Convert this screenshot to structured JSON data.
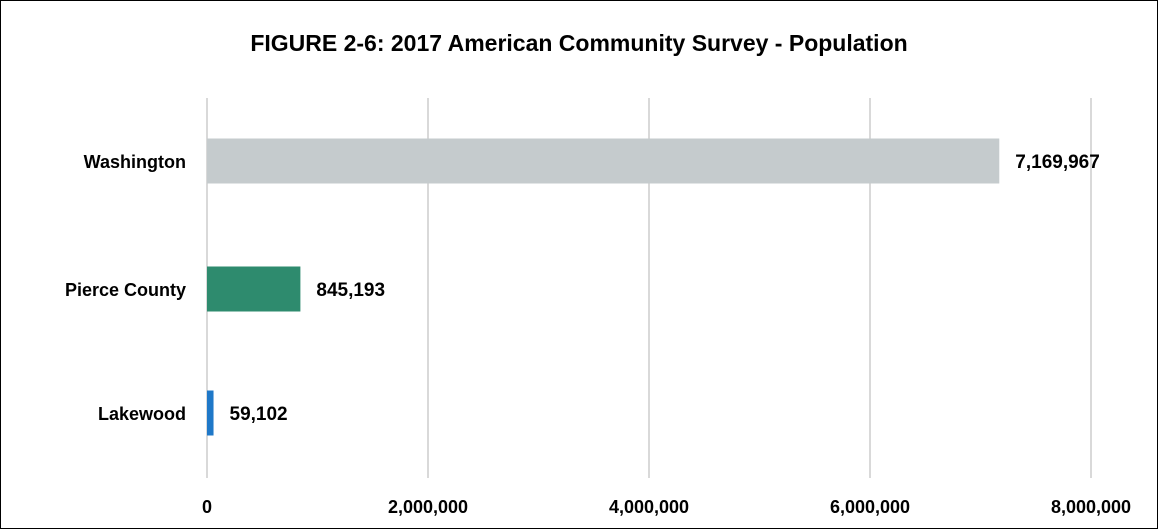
{
  "chart_data": {
    "type": "bar",
    "orientation": "horizontal",
    "title": "FIGURE 2-6: 2017 American Community Survey - Population",
    "categories": [
      "Washington",
      "Pierce County",
      "Lakewood"
    ],
    "values": [
      7169967,
      845193,
      59102
    ],
    "data_labels": [
      "7,169,967",
      "845,193",
      "59,102"
    ],
    "colors": [
      "#c5cbcd",
      "#2e8b6e",
      "#1f78c8"
    ],
    "xlim": [
      0,
      8000000
    ],
    "x_ticks": [
      0,
      2000000,
      4000000,
      6000000,
      8000000
    ],
    "x_tick_labels": [
      "0",
      "2,000,000",
      "4,000,000",
      "6,000,000",
      "8,000,000"
    ],
    "grid": "vertical",
    "gridline_color": "#d9d9d9",
    "legend": "none"
  }
}
